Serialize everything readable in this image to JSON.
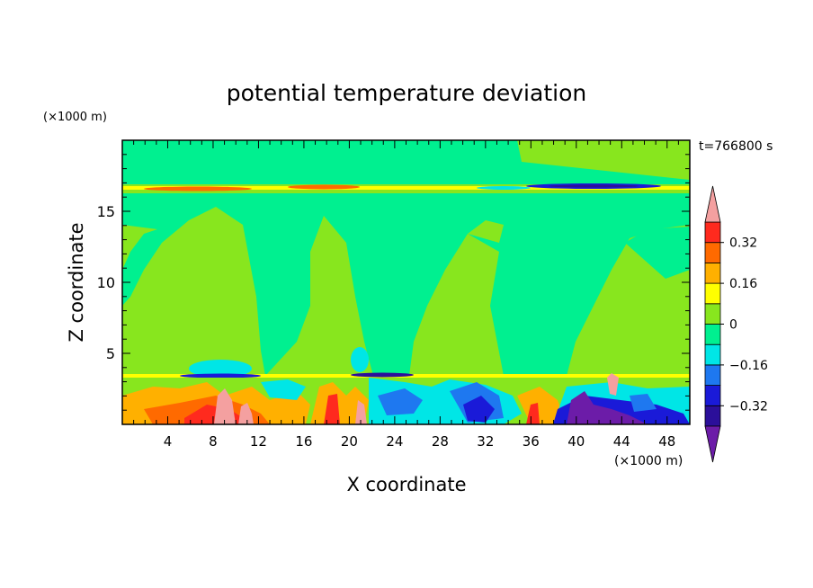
{
  "chart_data": {
    "type": "heatmap",
    "title": "potential temperature deviation",
    "time_label": "t=766800 s",
    "xlabel": "X coordinate",
    "ylabel": "Z coordinate",
    "x_unit": "(×1000 m)",
    "y_unit": "(×1000 m)",
    "xlim": [
      0,
      50
    ],
    "ylim": [
      0,
      20
    ],
    "x_ticks": [
      4,
      8,
      12,
      16,
      20,
      24,
      28,
      32,
      36,
      40,
      44,
      48
    ],
    "y_ticks": [
      5,
      10,
      15
    ],
    "colorbar": {
      "labeled_levels": [
        "0.32",
        "0.16",
        "0",
        "−0.16",
        "−0.32"
      ],
      "levels": [
        -0.4,
        -0.32,
        -0.24,
        -0.16,
        -0.08,
        0,
        0.08,
        0.16,
        0.24,
        0.32,
        0.4
      ],
      "colors": [
        "#6c1ca8",
        "#2b0f9a",
        "#1a1ad8",
        "#1e78f0",
        "#00e6e6",
        "#00f090",
        "#88e61e",
        "#ffff00",
        "#ffb000",
        "#ff6a00",
        "#ff2a1e",
        "#f4a0a0"
      ]
    },
    "grid": false,
    "legend_position": "right (colorbar)"
  }
}
